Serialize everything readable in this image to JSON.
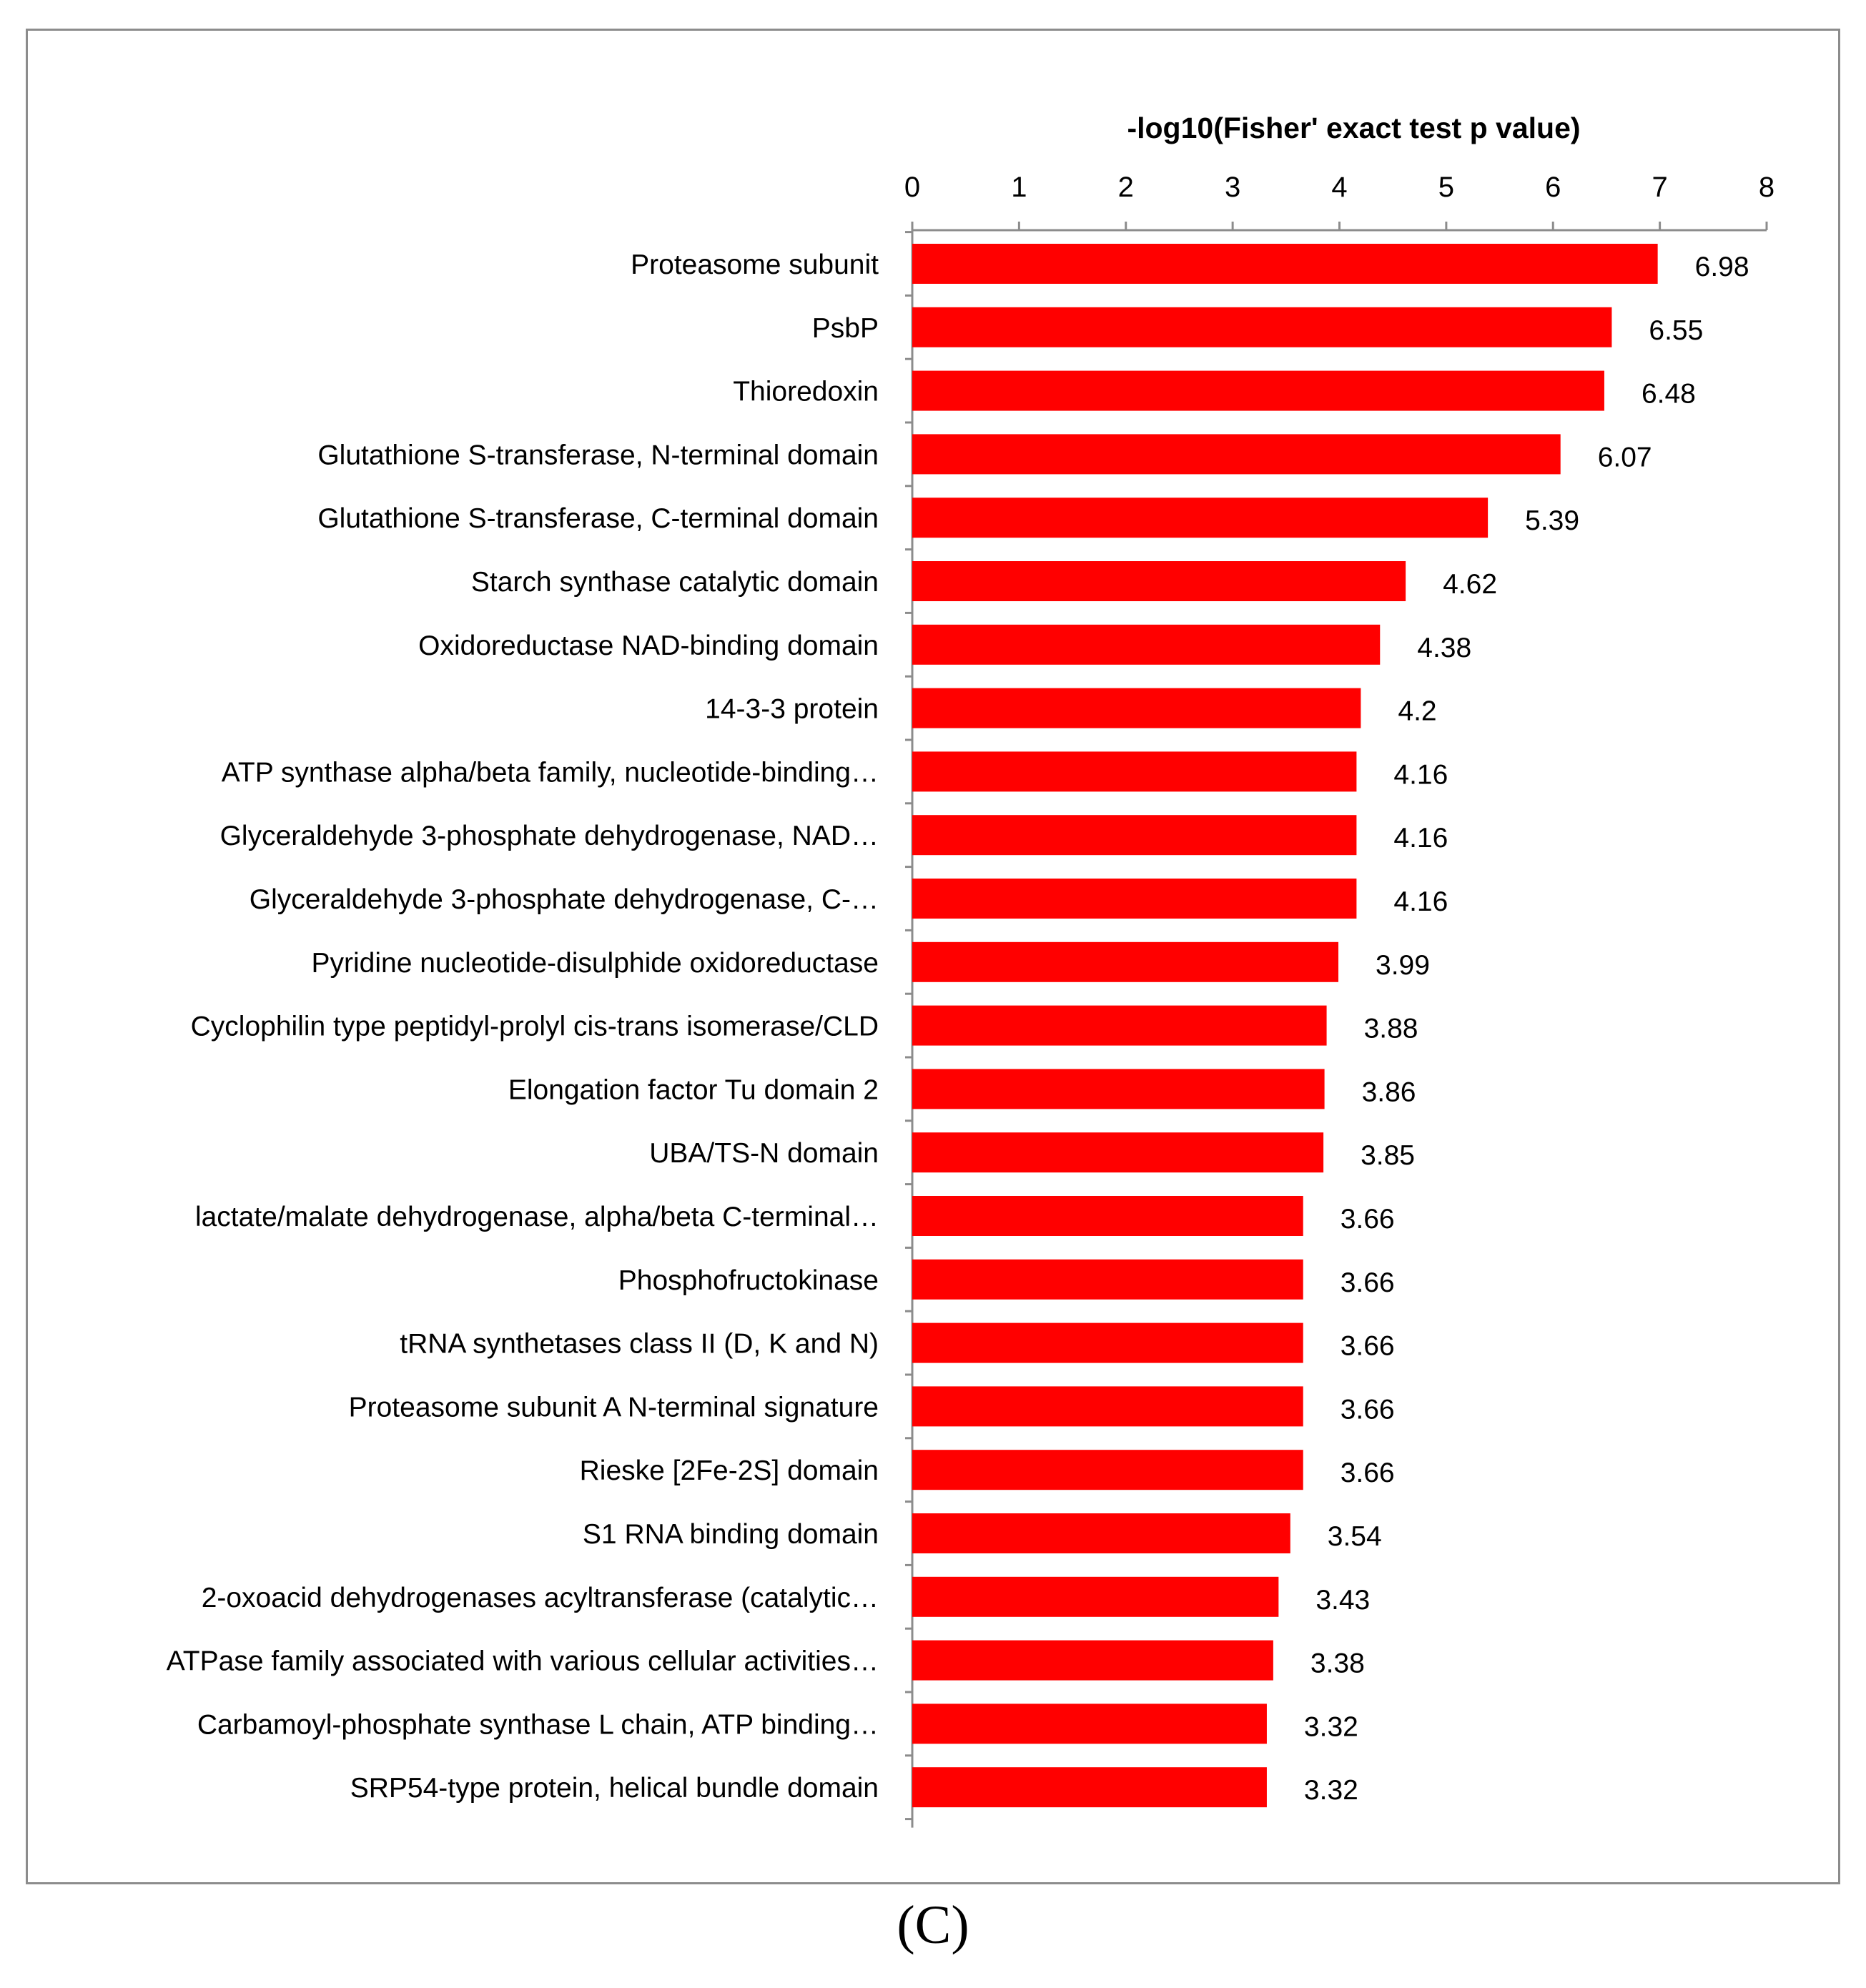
{
  "panel_label": "(C)",
  "chart_data": {
    "type": "bar",
    "orientation": "horizontal",
    "title": "-log10(Fisher' exact test p value)",
    "xlabel": "-log10(Fisher' exact test p value)",
    "ylabel": "",
    "xlim": [
      0,
      8
    ],
    "x_ticks": [
      0,
      1,
      2,
      3,
      4,
      5,
      6,
      7,
      8
    ],
    "x_tick_labels": [
      "0",
      "1",
      "2",
      "3",
      "4",
      "5",
      "6",
      "7",
      "8"
    ],
    "axis_position": "top",
    "grid": false,
    "legend": null,
    "bar_color": "#ff0000",
    "categories": [
      "Proteasome subunit",
      "PsbP",
      "Thioredoxin",
      "Glutathione S-transferase, N-terminal domain",
      "Glutathione S-transferase, C-terminal domain",
      "Starch synthase catalytic domain",
      "Oxidoreductase NAD-binding domain",
      "14-3-3 protein",
      "ATP synthase alpha/beta family, nucleotide-binding…",
      "Glyceraldehyde 3-phosphate dehydrogenase, NAD…",
      "Glyceraldehyde 3-phosphate dehydrogenase, C-…",
      "Pyridine nucleotide-disulphide oxidoreductase",
      "Cyclophilin type peptidyl-prolyl cis-trans isomerase/CLD",
      "Elongation factor Tu domain 2",
      "UBA/TS-N domain",
      "lactate/malate dehydrogenase, alpha/beta C-terminal…",
      "Phosphofructokinase",
      "tRNA synthetases class II (D, K and N)",
      "Proteasome subunit A N-terminal signature",
      "Rieske [2Fe-2S] domain",
      "S1 RNA binding domain",
      "2-oxoacid dehydrogenases acyltransferase (catalytic…",
      "ATPase family associated with various cellular activities…",
      "Carbamoyl-phosphate synthase L chain, ATP binding…",
      "SRP54-type protein, helical bundle domain"
    ],
    "values": [
      6.98,
      6.55,
      6.48,
      6.07,
      5.39,
      4.62,
      4.38,
      4.2,
      4.16,
      4.16,
      4.16,
      3.99,
      3.88,
      3.86,
      3.85,
      3.66,
      3.66,
      3.66,
      3.66,
      3.66,
      3.54,
      3.43,
      3.38,
      3.32,
      3.32
    ],
    "data_labels": [
      "6.98",
      "6.55",
      "6.48",
      "6.07",
      "5.39",
      "4.62",
      "4.38",
      "4.2",
      "4.16",
      "4.16",
      "4.16",
      "3.99",
      "3.88",
      "3.86",
      "3.85",
      "3.66",
      "3.66",
      "3.66",
      "3.66",
      "3.66",
      "3.54",
      "3.43",
      "3.38",
      "3.32",
      "3.32"
    ]
  }
}
